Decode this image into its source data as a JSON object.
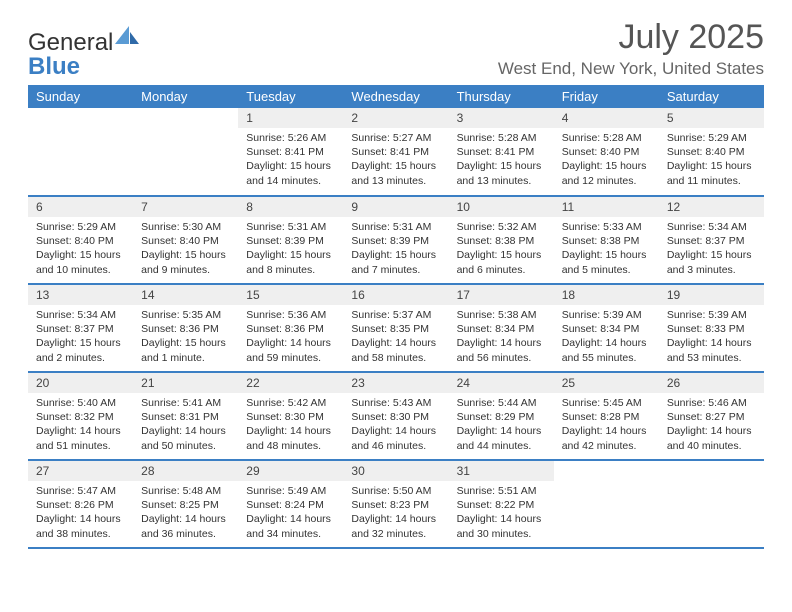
{
  "logo": {
    "word1": "General",
    "word2": "Blue"
  },
  "title": "July 2025",
  "location": "West End, New York, United States",
  "colors": {
    "header_bg": "#3b7fc4",
    "header_text": "#ffffff",
    "daynum_bg": "#efefef",
    "rule": "#3b7fc4",
    "body_text": "#333333",
    "title_text": "#555555",
    "location_text": "#666666"
  },
  "weekdays": [
    "Sunday",
    "Monday",
    "Tuesday",
    "Wednesday",
    "Thursday",
    "Friday",
    "Saturday"
  ],
  "weeks": [
    [
      null,
      null,
      {
        "n": "1",
        "sr": "Sunrise: 5:26 AM",
        "ss": "Sunset: 8:41 PM",
        "d1": "Daylight: 15 hours",
        "d2": "and 14 minutes."
      },
      {
        "n": "2",
        "sr": "Sunrise: 5:27 AM",
        "ss": "Sunset: 8:41 PM",
        "d1": "Daylight: 15 hours",
        "d2": "and 13 minutes."
      },
      {
        "n": "3",
        "sr": "Sunrise: 5:28 AM",
        "ss": "Sunset: 8:41 PM",
        "d1": "Daylight: 15 hours",
        "d2": "and 13 minutes."
      },
      {
        "n": "4",
        "sr": "Sunrise: 5:28 AM",
        "ss": "Sunset: 8:40 PM",
        "d1": "Daylight: 15 hours",
        "d2": "and 12 minutes."
      },
      {
        "n": "5",
        "sr": "Sunrise: 5:29 AM",
        "ss": "Sunset: 8:40 PM",
        "d1": "Daylight: 15 hours",
        "d2": "and 11 minutes."
      }
    ],
    [
      {
        "n": "6",
        "sr": "Sunrise: 5:29 AM",
        "ss": "Sunset: 8:40 PM",
        "d1": "Daylight: 15 hours",
        "d2": "and 10 minutes."
      },
      {
        "n": "7",
        "sr": "Sunrise: 5:30 AM",
        "ss": "Sunset: 8:40 PM",
        "d1": "Daylight: 15 hours",
        "d2": "and 9 minutes."
      },
      {
        "n": "8",
        "sr": "Sunrise: 5:31 AM",
        "ss": "Sunset: 8:39 PM",
        "d1": "Daylight: 15 hours",
        "d2": "and 8 minutes."
      },
      {
        "n": "9",
        "sr": "Sunrise: 5:31 AM",
        "ss": "Sunset: 8:39 PM",
        "d1": "Daylight: 15 hours",
        "d2": "and 7 minutes."
      },
      {
        "n": "10",
        "sr": "Sunrise: 5:32 AM",
        "ss": "Sunset: 8:38 PM",
        "d1": "Daylight: 15 hours",
        "d2": "and 6 minutes."
      },
      {
        "n": "11",
        "sr": "Sunrise: 5:33 AM",
        "ss": "Sunset: 8:38 PM",
        "d1": "Daylight: 15 hours",
        "d2": "and 5 minutes."
      },
      {
        "n": "12",
        "sr": "Sunrise: 5:34 AM",
        "ss": "Sunset: 8:37 PM",
        "d1": "Daylight: 15 hours",
        "d2": "and 3 minutes."
      }
    ],
    [
      {
        "n": "13",
        "sr": "Sunrise: 5:34 AM",
        "ss": "Sunset: 8:37 PM",
        "d1": "Daylight: 15 hours",
        "d2": "and 2 minutes."
      },
      {
        "n": "14",
        "sr": "Sunrise: 5:35 AM",
        "ss": "Sunset: 8:36 PM",
        "d1": "Daylight: 15 hours",
        "d2": "and 1 minute."
      },
      {
        "n": "15",
        "sr": "Sunrise: 5:36 AM",
        "ss": "Sunset: 8:36 PM",
        "d1": "Daylight: 14 hours",
        "d2": "and 59 minutes."
      },
      {
        "n": "16",
        "sr": "Sunrise: 5:37 AM",
        "ss": "Sunset: 8:35 PM",
        "d1": "Daylight: 14 hours",
        "d2": "and 58 minutes."
      },
      {
        "n": "17",
        "sr": "Sunrise: 5:38 AM",
        "ss": "Sunset: 8:34 PM",
        "d1": "Daylight: 14 hours",
        "d2": "and 56 minutes."
      },
      {
        "n": "18",
        "sr": "Sunrise: 5:39 AM",
        "ss": "Sunset: 8:34 PM",
        "d1": "Daylight: 14 hours",
        "d2": "and 55 minutes."
      },
      {
        "n": "19",
        "sr": "Sunrise: 5:39 AM",
        "ss": "Sunset: 8:33 PM",
        "d1": "Daylight: 14 hours",
        "d2": "and 53 minutes."
      }
    ],
    [
      {
        "n": "20",
        "sr": "Sunrise: 5:40 AM",
        "ss": "Sunset: 8:32 PM",
        "d1": "Daylight: 14 hours",
        "d2": "and 51 minutes."
      },
      {
        "n": "21",
        "sr": "Sunrise: 5:41 AM",
        "ss": "Sunset: 8:31 PM",
        "d1": "Daylight: 14 hours",
        "d2": "and 50 minutes."
      },
      {
        "n": "22",
        "sr": "Sunrise: 5:42 AM",
        "ss": "Sunset: 8:30 PM",
        "d1": "Daylight: 14 hours",
        "d2": "and 48 minutes."
      },
      {
        "n": "23",
        "sr": "Sunrise: 5:43 AM",
        "ss": "Sunset: 8:30 PM",
        "d1": "Daylight: 14 hours",
        "d2": "and 46 minutes."
      },
      {
        "n": "24",
        "sr": "Sunrise: 5:44 AM",
        "ss": "Sunset: 8:29 PM",
        "d1": "Daylight: 14 hours",
        "d2": "and 44 minutes."
      },
      {
        "n": "25",
        "sr": "Sunrise: 5:45 AM",
        "ss": "Sunset: 8:28 PM",
        "d1": "Daylight: 14 hours",
        "d2": "and 42 minutes."
      },
      {
        "n": "26",
        "sr": "Sunrise: 5:46 AM",
        "ss": "Sunset: 8:27 PM",
        "d1": "Daylight: 14 hours",
        "d2": "and 40 minutes."
      }
    ],
    [
      {
        "n": "27",
        "sr": "Sunrise: 5:47 AM",
        "ss": "Sunset: 8:26 PM",
        "d1": "Daylight: 14 hours",
        "d2": "and 38 minutes."
      },
      {
        "n": "28",
        "sr": "Sunrise: 5:48 AM",
        "ss": "Sunset: 8:25 PM",
        "d1": "Daylight: 14 hours",
        "d2": "and 36 minutes."
      },
      {
        "n": "29",
        "sr": "Sunrise: 5:49 AM",
        "ss": "Sunset: 8:24 PM",
        "d1": "Daylight: 14 hours",
        "d2": "and 34 minutes."
      },
      {
        "n": "30",
        "sr": "Sunrise: 5:50 AM",
        "ss": "Sunset: 8:23 PM",
        "d1": "Daylight: 14 hours",
        "d2": "and 32 minutes."
      },
      {
        "n": "31",
        "sr": "Sunrise: 5:51 AM",
        "ss": "Sunset: 8:22 PM",
        "d1": "Daylight: 14 hours",
        "d2": "and 30 minutes."
      },
      null,
      null
    ]
  ]
}
